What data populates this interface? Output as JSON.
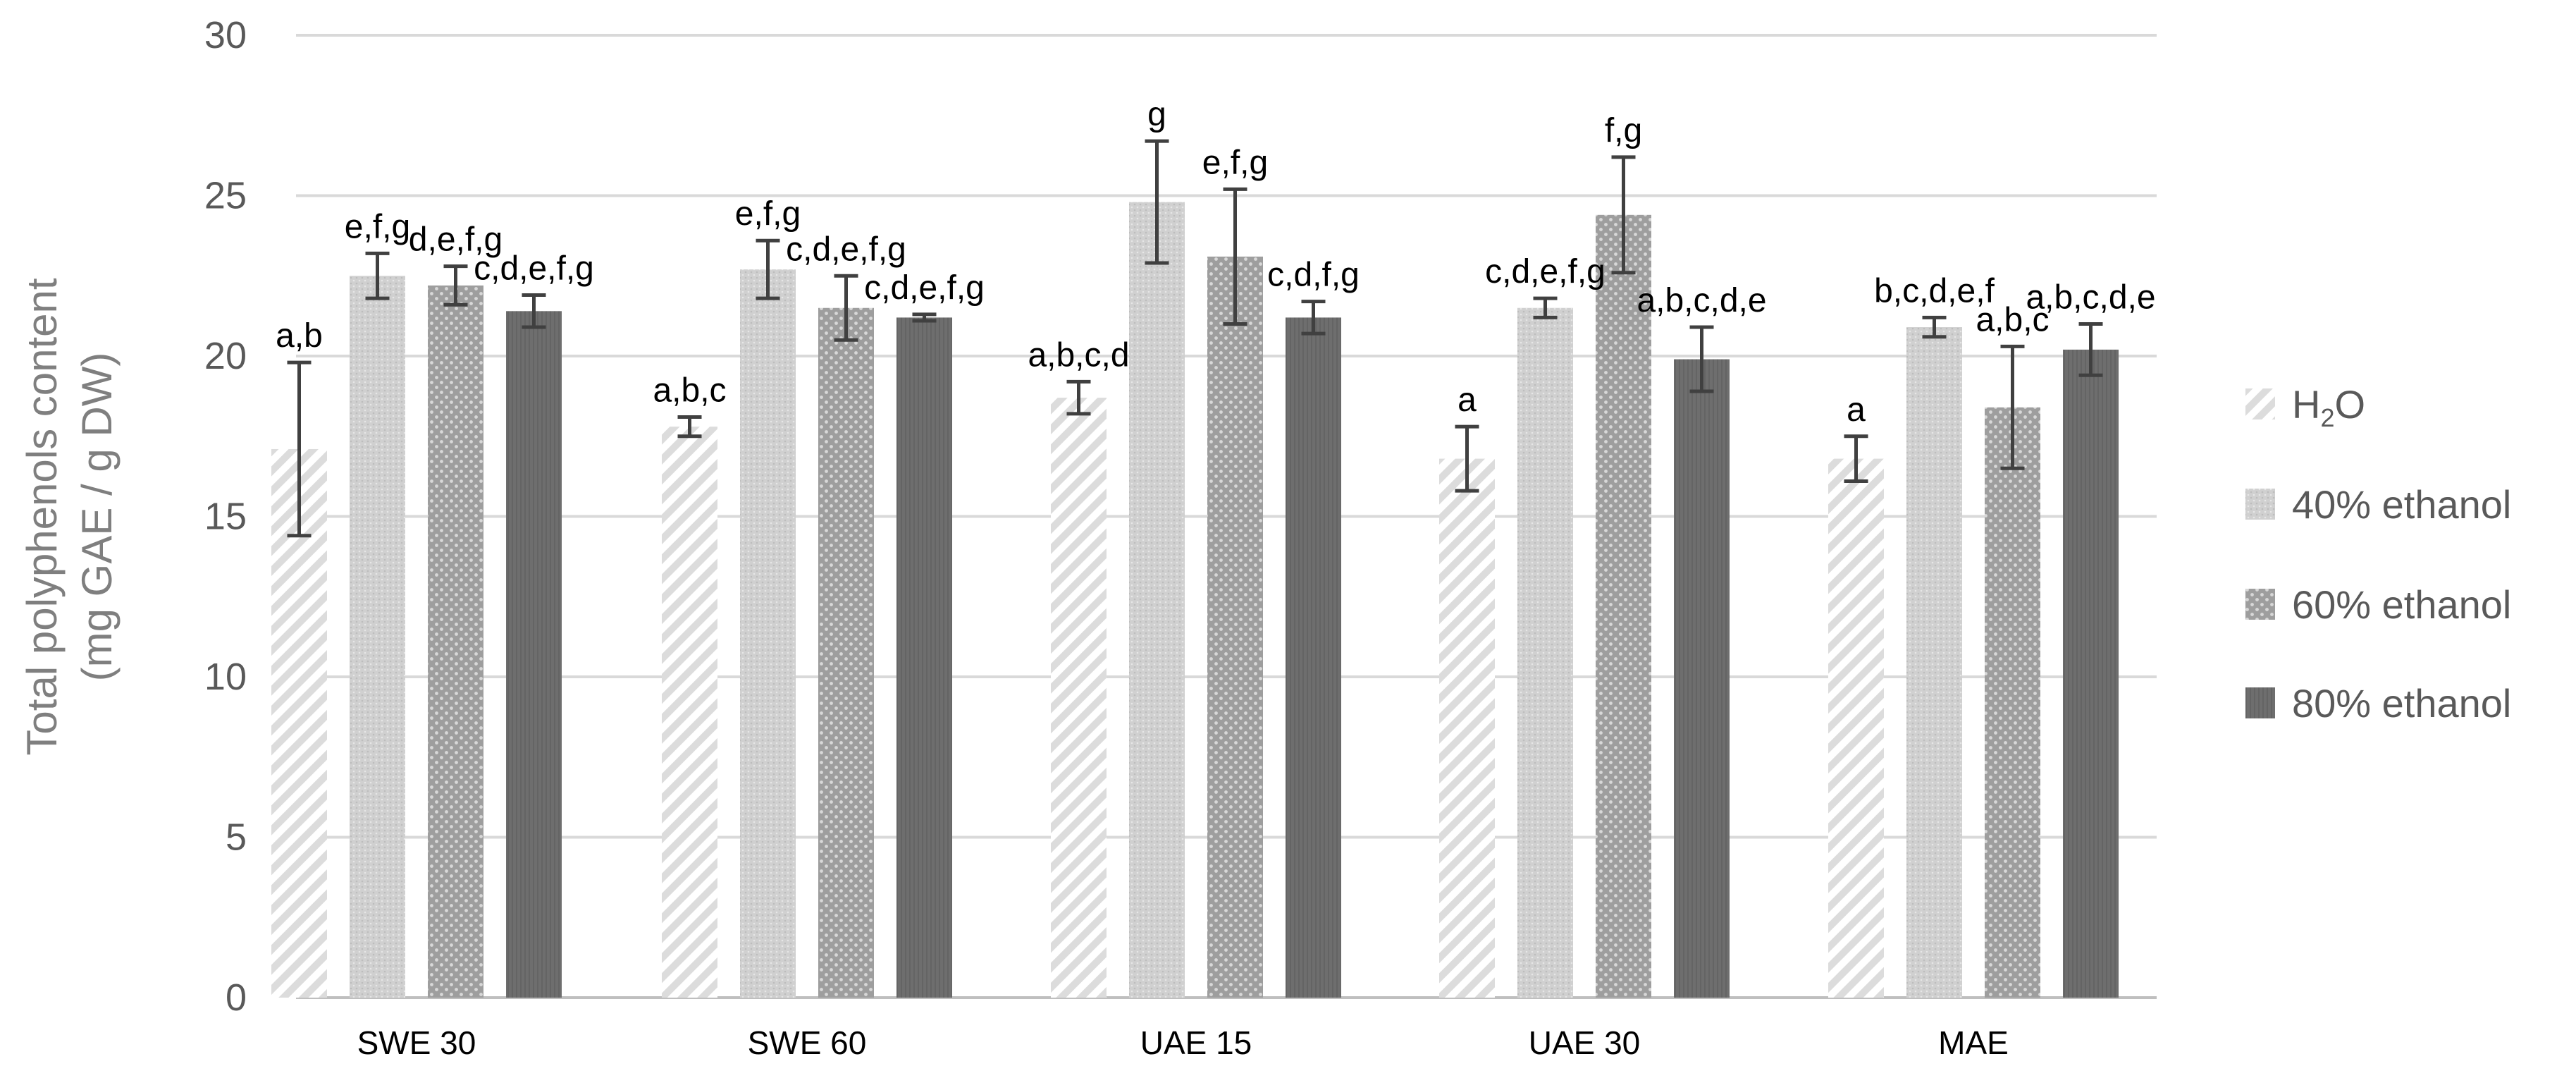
{
  "chart_data": {
    "type": "bar",
    "ylabel_lines": [
      "Total polyphenols content",
      "(mg GAE / g DW)"
    ],
    "ylim": [
      0,
      30
    ],
    "yticks": [
      0,
      5,
      10,
      15,
      20,
      25,
      30
    ],
    "grid": true,
    "legend_position": "right",
    "categories": [
      "SWE 30",
      "SWE 60",
      "UAE 15",
      "UAE 30",
      "MAE"
    ],
    "series": [
      {
        "name": "H2O",
        "name_main": "H",
        "name_sub": "2",
        "name_tail": "O",
        "pattern": "diagonal-hatch-light",
        "color": "#d9d9d9",
        "values": [
          17.1,
          17.8,
          18.7,
          16.8,
          16.8
        ],
        "errors": [
          2.7,
          0.3,
          0.5,
          1.0,
          0.7
        ],
        "labels": [
          "a,b",
          "a,b,c",
          "a,b,c,d",
          "a",
          "a"
        ]
      },
      {
        "name": "40% ethanol",
        "pattern": "fine-dots-light",
        "color": "#c8c8c8",
        "values": [
          22.5,
          22.7,
          24.8,
          21.5,
          20.9
        ],
        "errors": [
          0.7,
          0.9,
          1.9,
          0.3,
          0.3
        ],
        "labels": [
          "e,f,g",
          "e,f,g",
          "g",
          "c,d,e,f,g",
          "b,c,d,e,f"
        ]
      },
      {
        "name": "60% ethanol",
        "pattern": "dots-medium",
        "color": "#a6a6a6",
        "values": [
          22.2,
          21.5,
          23.1,
          24.4,
          18.4
        ],
        "errors": [
          0.6,
          1.0,
          2.1,
          1.8,
          1.9
        ],
        "labels": [
          "d,e,f,g",
          "c,d,e,f,g",
          "e,f,g",
          "f,g",
          "a,b,c"
        ]
      },
      {
        "name": "80% ethanol",
        "pattern": "solid-dark",
        "color": "#6b6b6b",
        "values": [
          21.4,
          21.2,
          21.2,
          19.9,
          20.2
        ],
        "errors": [
          0.5,
          0.1,
          0.5,
          1.0,
          0.8
        ],
        "labels": [
          "c,d,e,f,g",
          "c,d,e,f,g",
          "c,d,f,g",
          "a,b,c,d,e",
          "a,b,c,d,e"
        ]
      }
    ]
  }
}
